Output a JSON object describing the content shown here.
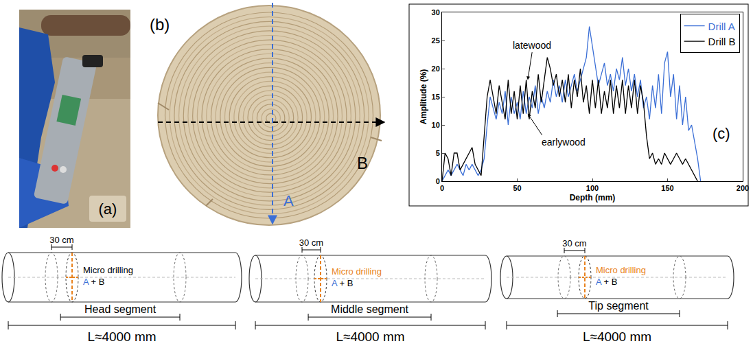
{
  "panels": {
    "a": {
      "label": "(a)"
    },
    "b": {
      "label": "(b)",
      "drills": [
        {
          "name": "A",
          "color": "#3b6fd6"
        },
        {
          "name": "B",
          "color": "#000000"
        }
      ]
    }
  },
  "chart_data": {
    "type": "line",
    "xlabel": "Depth (mm)",
    "ylabel": "Amplitude (%)",
    "xlim": [
      0,
      200
    ],
    "xticks": [
      0,
      50,
      100,
      150,
      200
    ],
    "ylim": [
      0,
      30
    ],
    "yticks": [
      0,
      5,
      10,
      15,
      20,
      25,
      30
    ],
    "grid": false,
    "legend": "upper right",
    "annotations": [
      "latewood",
      "earlywood",
      "(c)"
    ],
    "series": [
      {
        "name": "Drill A",
        "color": "#3b6fd6",
        "x": [
          0,
          2,
          4,
          6,
          8,
          10,
          12,
          14,
          16,
          18,
          20,
          22,
          24,
          26,
          28,
          30,
          32,
          34,
          36,
          38,
          40,
          42,
          44,
          46,
          48,
          50,
          52,
          54,
          56,
          58,
          60,
          62,
          64,
          66,
          68,
          70,
          72,
          74,
          76,
          78,
          80,
          82,
          84,
          86,
          88,
          90,
          92,
          94,
          96,
          98,
          100,
          102,
          104,
          106,
          108,
          110,
          112,
          114,
          116,
          118,
          120,
          122,
          124,
          126,
          128,
          130,
          132,
          134,
          136,
          138,
          140,
          142,
          144,
          146,
          148,
          150,
          152,
          154,
          156,
          158,
          160,
          162,
          164,
          166,
          168,
          170,
          172
        ],
        "values": [
          0,
          1,
          2,
          1,
          2,
          3,
          2,
          1,
          3,
          2,
          3,
          2,
          1,
          2,
          4,
          10,
          15,
          13,
          11,
          14,
          12,
          16,
          10,
          15,
          12,
          14,
          11,
          16,
          12,
          15,
          13,
          17,
          12,
          15,
          13,
          16,
          14,
          18,
          15,
          17,
          14,
          18,
          15,
          17,
          19,
          16,
          18,
          20,
          22,
          27.5,
          24,
          20,
          17,
          19,
          21,
          17,
          19,
          16,
          20,
          18,
          22,
          17,
          20,
          16,
          19,
          15,
          18,
          13,
          15,
          11,
          17,
          13,
          19,
          12,
          21,
          23,
          15,
          19,
          11,
          17,
          10,
          15,
          9,
          10,
          7,
          4,
          0
        ]
      },
      {
        "name": "Drill B",
        "color": "#000000",
        "x": [
          0,
          2,
          4,
          6,
          8,
          10,
          12,
          14,
          16,
          18,
          20,
          22,
          24,
          26,
          28,
          30,
          32,
          34,
          36,
          38,
          40,
          42,
          44,
          46,
          48,
          50,
          52,
          54,
          56,
          58,
          60,
          62,
          64,
          66,
          68,
          70,
          72,
          74,
          76,
          78,
          80,
          82,
          84,
          86,
          88,
          90,
          92,
          94,
          96,
          98,
          100,
          102,
          104,
          106,
          108,
          110,
          112,
          114,
          116,
          118,
          120,
          122,
          124,
          126,
          128,
          130,
          132,
          134,
          136,
          138,
          140,
          142,
          144,
          146,
          148,
          150,
          152,
          154,
          156,
          158,
          160,
          162,
          164,
          166,
          168,
          170
        ],
        "values": [
          0,
          5,
          4,
          1,
          5,
          5,
          2,
          3,
          4,
          5,
          6,
          3,
          2,
          1,
          8,
          15,
          18,
          15,
          12,
          17,
          14,
          11,
          18,
          12,
          16,
          11,
          17,
          12,
          18,
          11,
          16,
          13,
          19,
          14,
          18,
          22,
          20,
          17,
          19,
          15,
          18,
          14,
          19,
          13,
          18,
          15,
          20,
          14,
          17,
          12,
          18,
          13,
          18,
          12,
          16,
          13,
          18,
          12,
          17,
          13,
          18,
          12,
          17,
          13,
          18,
          12,
          17,
          14,
          8,
          4,
          5,
          3,
          4,
          3,
          5,
          4,
          3,
          4,
          5,
          4,
          3,
          4,
          3,
          2,
          1,
          0
        ]
      }
    ]
  },
  "segments": [
    {
      "name": "Head segment",
      "length": "L≈4000 mm",
      "spacing": "30 cm",
      "drilling": "Micro drilling",
      "drills": "A + B",
      "color": "#000000"
    },
    {
      "name": "Middle segment",
      "length": "L≈4000 mm",
      "spacing": "30 cm",
      "drilling": "Micro drilling",
      "drills": "A + B",
      "color": "#e8821e"
    },
    {
      "name": "Tip segment",
      "length": "L≈4000 mm",
      "spacing": "30 cm",
      "drilling": "Micro drilling",
      "drills": "A + B",
      "color": "#e8821e"
    }
  ]
}
